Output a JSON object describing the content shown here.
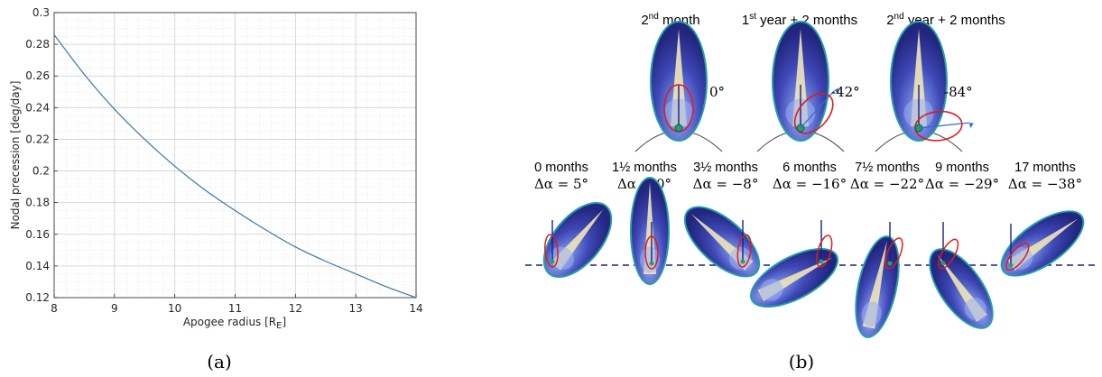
{
  "colors": {
    "curve": "#3a78a8",
    "orbit": "#e01b1b",
    "ellipse_dark": "#24278f",
    "ellipse_mid": "#4a56c4",
    "ellipse_light": "#9aaef0",
    "ellipse_edge": "#22a0a6",
    "fan": "#efe6b6",
    "earth_arc": "#444444",
    "dashed_line": "#1a1f78",
    "vertical_line": "#1a1f8a",
    "arrow": "#2e6fd0"
  },
  "captions": {
    "a": "(a)",
    "b": "(b)"
  },
  "chart_data": [
    {
      "type": "line",
      "xlabel": "Apogee radius [R",
      "xlabel_sub": "E",
      "xlabel_end": "]",
      "ylabel": "Nodal precession [deg/day]",
      "xlim": [
        8,
        14
      ],
      "ylim": [
        0.12,
        0.3
      ],
      "xticks": [
        "8",
        "9",
        "10",
        "11",
        "12",
        "13",
        "14"
      ],
      "yticks": [
        "0.12",
        "0.14",
        "0.16",
        "0.18",
        "0.2",
        "0.22",
        "0.24",
        "0.26",
        "0.28",
        "0.3"
      ],
      "grid": true,
      "series": [
        {
          "x": [
            8,
            8.5,
            9,
            9.5,
            10,
            10.5,
            11,
            11.5,
            12,
            12.5,
            13,
            13.5,
            14
          ],
          "y": [
            0.286,
            0.261,
            0.239,
            0.22,
            0.203,
            0.188,
            0.175,
            0.163,
            0.152,
            0.143,
            0.135,
            0.127,
            0.12
          ]
        }
      ]
    },
    {
      "type": "diagram",
      "top_panels": [
        {
          "title": "2",
          "title_sup": "nd",
          "title_rest": " month",
          "angle": "0°",
          "tilt": 0
        },
        {
          "title": "1",
          "title_sup": "st",
          "title_rest": " year + 2 months",
          "angle": "-42°",
          "tilt": -42
        },
        {
          "title": "2",
          "title_sup": "nd",
          "title_rest": " year + 2 months",
          "angle": "-84°",
          "tilt": -84
        }
      ],
      "bottom_panels": [
        {
          "months": "0 months",
          "delta": "Δα = 5°",
          "value": 5
        },
        {
          "months": "1½ months",
          "delta": "Δα = 0°",
          "value": 0
        },
        {
          "months": "3½ months",
          "delta": "Δα = −8°",
          "value": -8
        },
        {
          "months": "6 months",
          "delta": "Δα = −16°",
          "value": -16
        },
        {
          "months": "7½ months",
          "delta": "Δα = −22°",
          "value": -22
        },
        {
          "months": "9 months",
          "delta": "Δα = −29°",
          "value": -29
        },
        {
          "months": "17 months",
          "delta": "Δα = −38°",
          "value": -38
        }
      ]
    }
  ]
}
